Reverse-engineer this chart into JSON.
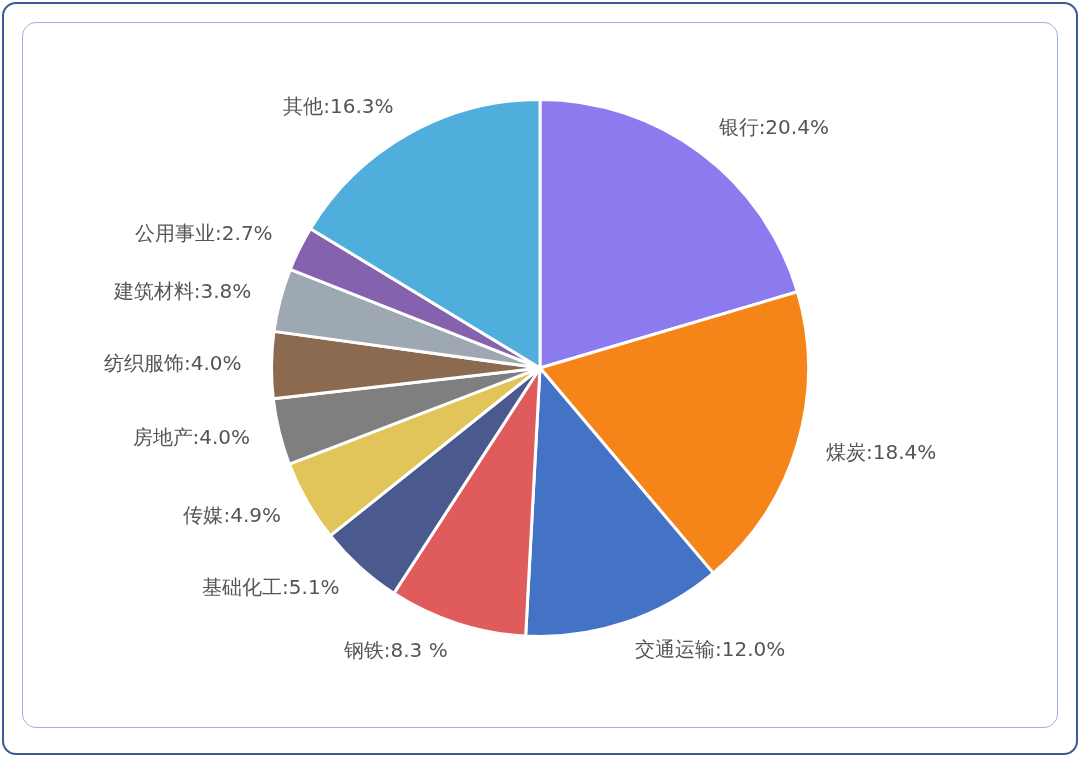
{
  "chart_data": {
    "type": "pie",
    "categories": [
      "银行",
      "煤炭",
      "交通运输",
      "钢铁",
      "基础化工",
      "传媒",
      "房地产",
      "纺织服饰",
      "建筑材料",
      "公用事业",
      "其他"
    ],
    "values": [
      20.4,
      18.4,
      12.0,
      8.3,
      5.1,
      4.9,
      4.0,
      4.0,
      3.8,
      2.7,
      16.3
    ],
    "value_labels": [
      "20.4%",
      "18.4%",
      "12.0%",
      "8.3 %",
      "5.1%",
      "4.9%",
      "4.0%",
      "4.0%",
      "3.8%",
      "2.7%",
      "16.3%"
    ],
    "colors": [
      "#8b7bef",
      "#f58518",
      "#4472c4",
      "#e05c5c",
      "#4a5a8e",
      "#e2c55a",
      "#7f7f7f",
      "#8c6a4f",
      "#9da8b3",
      "#8462ad",
      "#50aedc"
    ],
    "legend": false
  }
}
